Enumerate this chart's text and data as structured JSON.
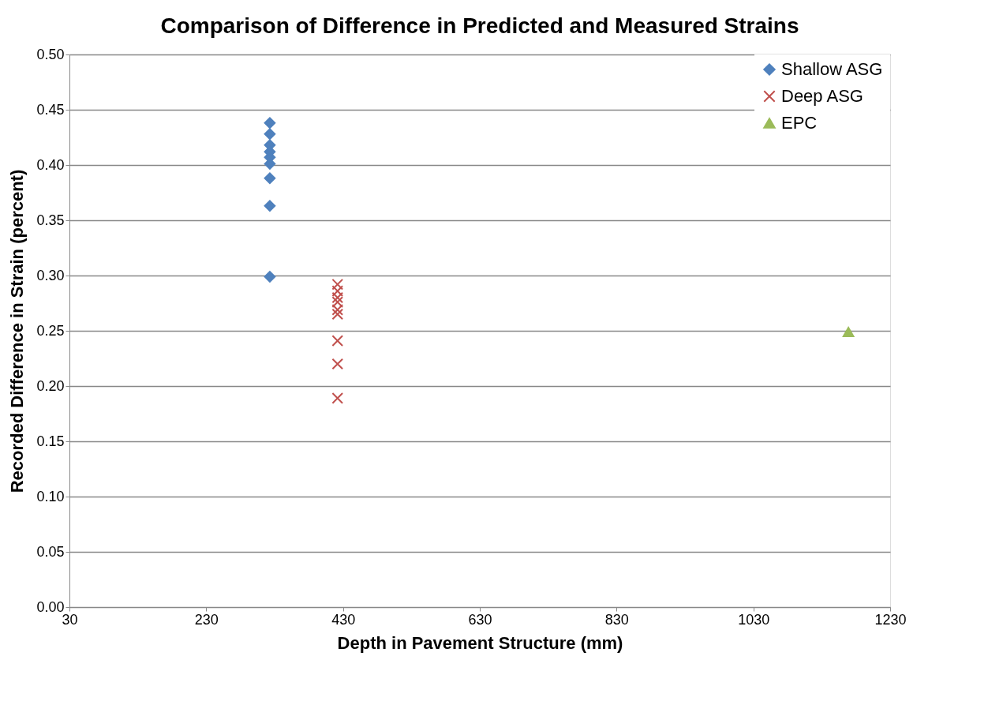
{
  "chart_data": {
    "type": "scatter",
    "title": "Comparison of Difference in Predicted and Measured Strains",
    "xlabel": "Depth in Pavement Structure (mm)",
    "ylabel": "Recorded Difference in Strain (percent)",
    "xlim": [
      30,
      1230
    ],
    "xticks": [
      30,
      230,
      430,
      630,
      830,
      1030,
      1230
    ],
    "ylim": [
      0,
      0.5
    ],
    "yticks": [
      {
        "value": 0,
        "label": "0.00"
      },
      {
        "value": 0.05,
        "label": "0.05"
      },
      {
        "value": 0.1,
        "label": "0.10"
      },
      {
        "value": 0.15,
        "label": "0.15"
      },
      {
        "value": 0.2,
        "label": "0.20"
      },
      {
        "value": 0.25,
        "label": "0.25"
      },
      {
        "value": 0.3,
        "label": "0.30"
      },
      {
        "value": 0.35,
        "label": "0.35"
      },
      {
        "value": 0.4,
        "label": "0.40"
      },
      {
        "value": 0.45,
        "label": "0.45"
      },
      {
        "value": 0.5,
        "label": "0.50"
      }
    ],
    "grid": "y",
    "legend": "top right",
    "series": [
      {
        "name": "Shallow ASG",
        "color": "#4f81bd",
        "marker": "diamond",
        "x": [
          323,
          323,
          323,
          323,
          323,
          323,
          323,
          323,
          323
        ],
        "values": [
          0.438,
          0.428,
          0.418,
          0.412,
          0.407,
          0.401,
          0.388,
          0.363,
          0.299
        ]
      },
      {
        "name": "Deep ASG",
        "color": "#c0504d",
        "marker": "cross",
        "x": [
          422,
          422,
          422,
          422,
          422,
          422,
          422,
          422,
          422
        ],
        "values": [
          0.292,
          0.286,
          0.28,
          0.276,
          0.269,
          0.265,
          0.241,
          0.22,
          0.189
        ]
      },
      {
        "name": "EPC",
        "color": "#9bbb59",
        "marker": "triangle",
        "x": [
          1169
        ],
        "values": [
          0.249
        ]
      }
    ]
  }
}
